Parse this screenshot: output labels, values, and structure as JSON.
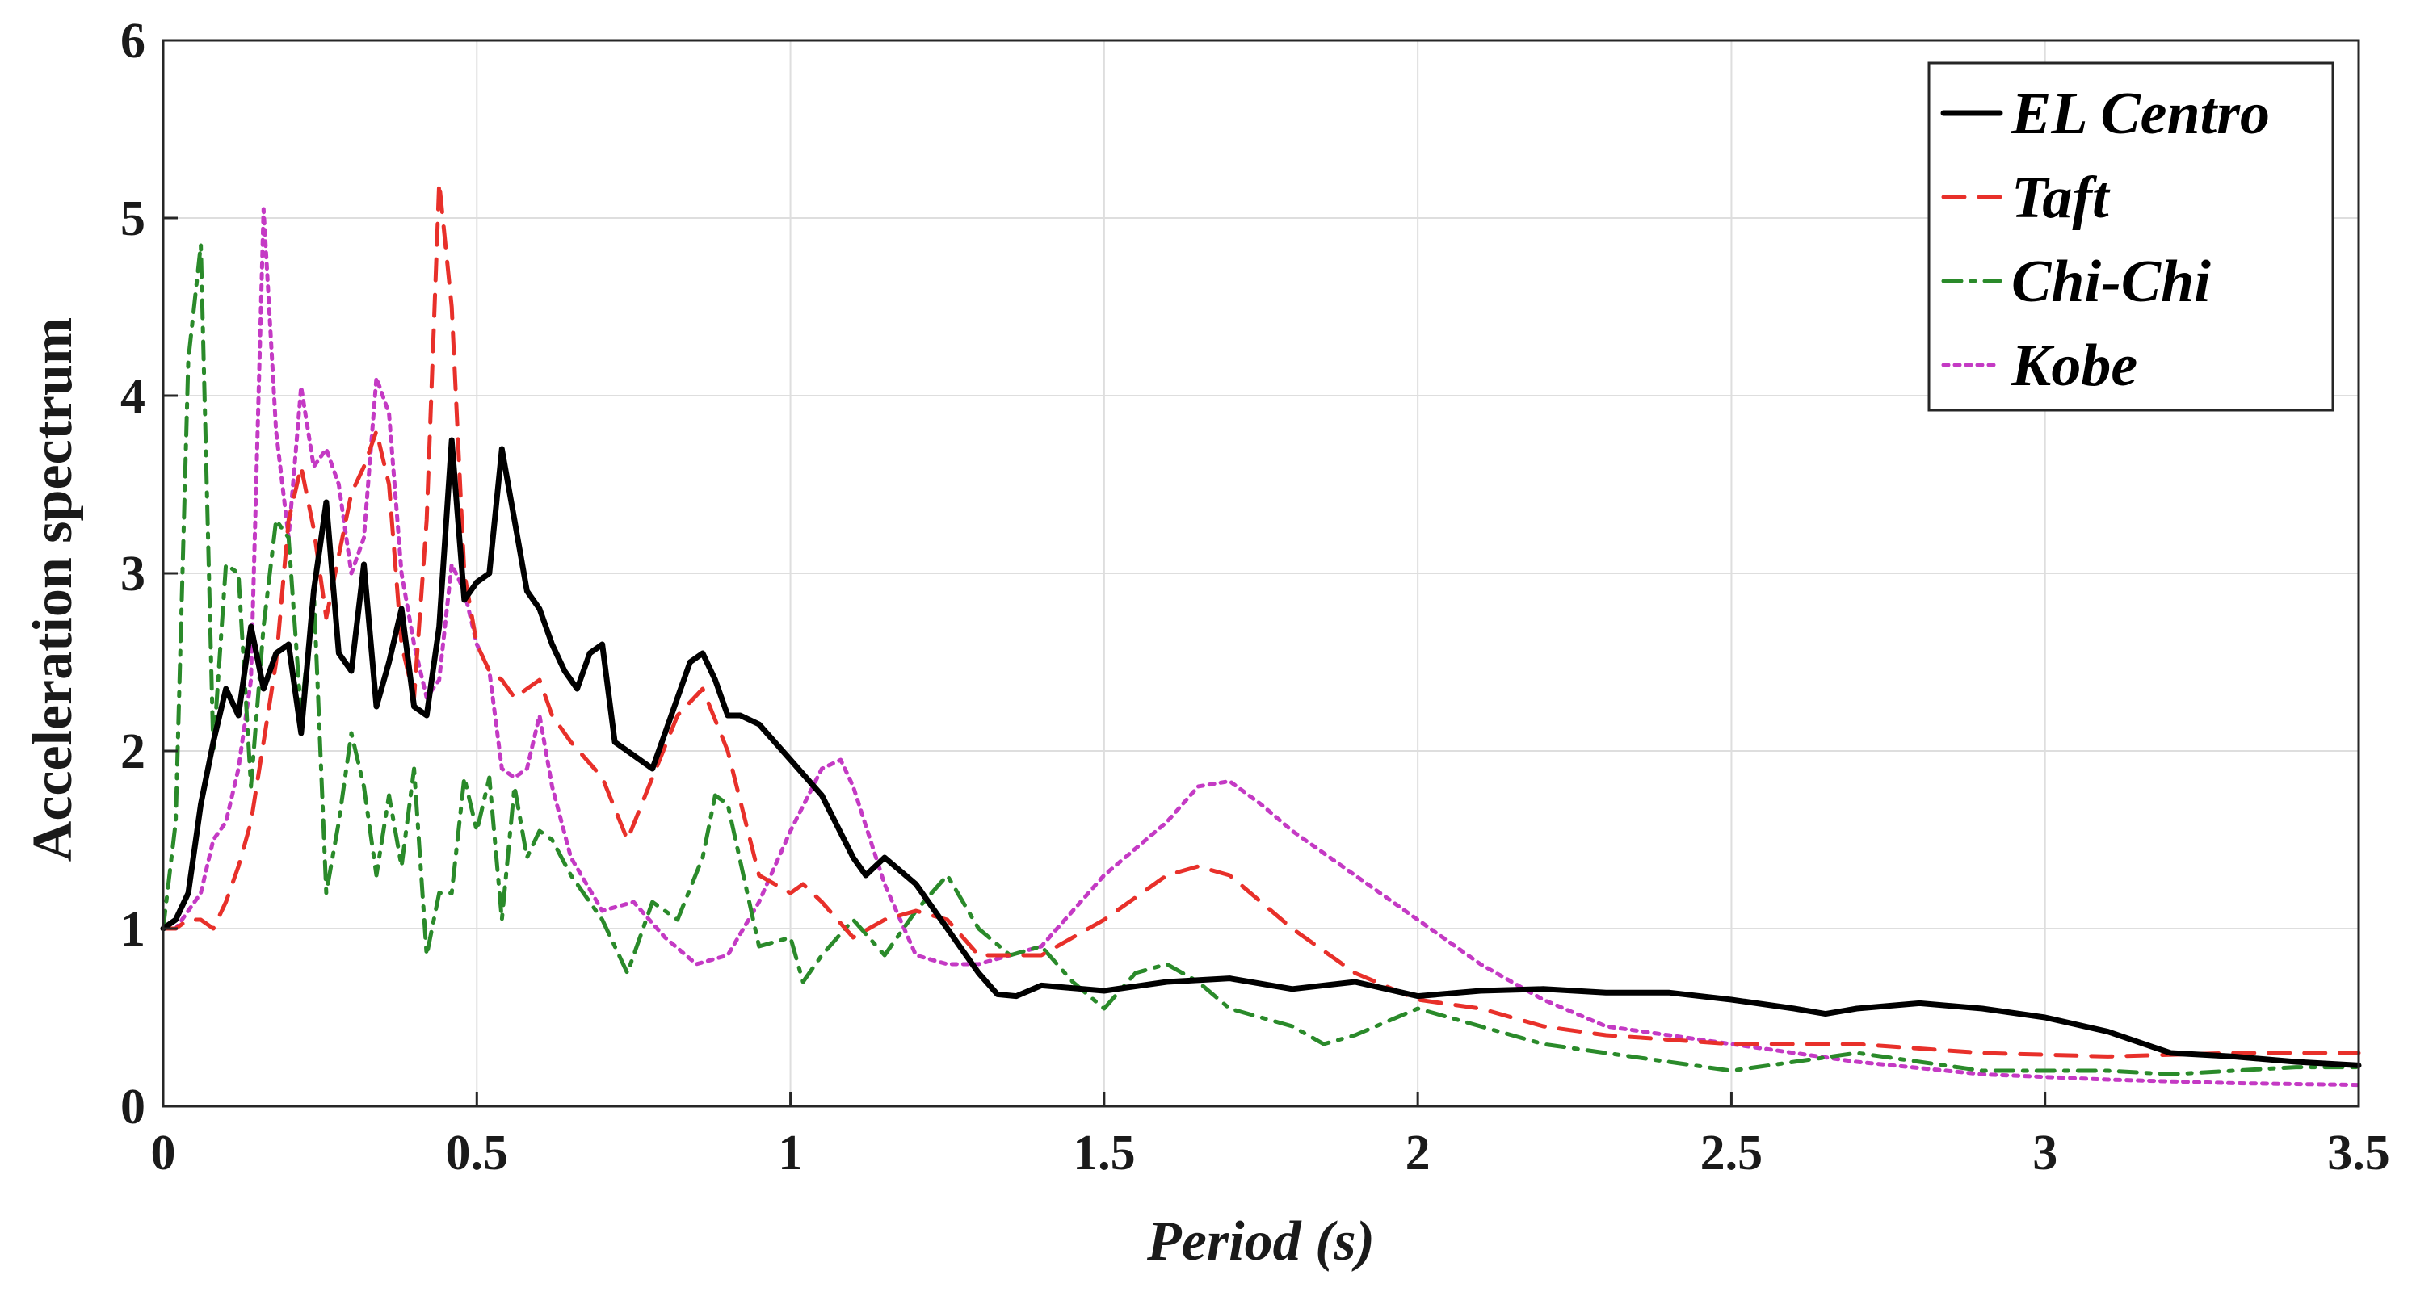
{
  "chart_data": {
    "type": "line",
    "title": "",
    "xlabel": "Period (s)",
    "ylabel": "Acceleration spectrum",
    "xlim": [
      0,
      3.5
    ],
    "ylim": [
      0,
      6
    ],
    "grid": true,
    "legend_position": "top-right",
    "xticks": [
      0,
      0.5,
      1,
      1.5,
      2,
      2.5,
      3,
      3.5
    ],
    "xtick_labels": [
      "0",
      "0.5",
      "1",
      "1.5",
      "2",
      "2.5",
      "3",
      "3.5"
    ],
    "yticks": [
      0,
      1,
      2,
      3,
      4,
      5,
      6
    ],
    "ytick_labels": [
      "0",
      "1",
      "2",
      "3",
      "4",
      "5",
      "6"
    ],
    "series": [
      {
        "name": "EL Centro",
        "color": "#000000",
        "style": "solid",
        "x": [
          0,
          0.02,
          0.04,
          0.06,
          0.08,
          0.1,
          0.12,
          0.14,
          0.16,
          0.18,
          0.2,
          0.22,
          0.24,
          0.26,
          0.28,
          0.3,
          0.32,
          0.34,
          0.36,
          0.38,
          0.4,
          0.42,
          0.44,
          0.46,
          0.48,
          0.5,
          0.52,
          0.54,
          0.56,
          0.58,
          0.6,
          0.62,
          0.64,
          0.66,
          0.68,
          0.7,
          0.72,
          0.74,
          0.76,
          0.78,
          0.8,
          0.82,
          0.84,
          0.86,
          0.88,
          0.9,
          0.92,
          0.95,
          1.0,
          1.05,
          1.1,
          1.12,
          1.15,
          1.2,
          1.25,
          1.3,
          1.33,
          1.36,
          1.4,
          1.5,
          1.6,
          1.7,
          1.8,
          1.9,
          2.0,
          2.1,
          2.2,
          2.3,
          2.4,
          2.5,
          2.6,
          2.65,
          2.7,
          2.8,
          2.9,
          3.0,
          3.1,
          3.2,
          3.3,
          3.4,
          3.5
        ],
        "y": [
          1.0,
          1.05,
          1.2,
          1.7,
          2.05,
          2.35,
          2.2,
          2.7,
          2.35,
          2.55,
          2.6,
          2.1,
          2.9,
          3.4,
          2.55,
          2.45,
          3.05,
          2.25,
          2.5,
          2.8,
          2.25,
          2.2,
          2.7,
          3.75,
          2.85,
          2.95,
          3.0,
          3.7,
          3.3,
          2.9,
          2.8,
          2.6,
          2.45,
          2.35,
          2.55,
          2.6,
          2.05,
          2.0,
          1.95,
          1.9,
          2.1,
          2.3,
          2.5,
          2.55,
          2.4,
          2.2,
          2.2,
          2.15,
          1.95,
          1.75,
          1.4,
          1.3,
          1.4,
          1.25,
          1.0,
          0.75,
          0.63,
          0.62,
          0.68,
          0.65,
          0.7,
          0.72,
          0.66,
          0.7,
          0.62,
          0.65,
          0.66,
          0.64,
          0.64,
          0.6,
          0.55,
          0.52,
          0.55,
          0.58,
          0.55,
          0.5,
          0.42,
          0.3,
          0.28,
          0.25,
          0.23
        ]
      },
      {
        "name": "Taft",
        "color": "#e8302a",
        "style": "dashed",
        "x": [
          0,
          0.02,
          0.04,
          0.06,
          0.08,
          0.1,
          0.12,
          0.14,
          0.16,
          0.18,
          0.2,
          0.22,
          0.24,
          0.26,
          0.28,
          0.3,
          0.32,
          0.34,
          0.36,
          0.38,
          0.4,
          0.42,
          0.44,
          0.46,
          0.48,
          0.5,
          0.52,
          0.54,
          0.56,
          0.58,
          0.6,
          0.62,
          0.65,
          0.7,
          0.74,
          0.78,
          0.82,
          0.86,
          0.9,
          0.95,
          1.0,
          1.02,
          1.05,
          1.1,
          1.15,
          1.2,
          1.25,
          1.3,
          1.4,
          1.5,
          1.6,
          1.65,
          1.7,
          1.8,
          1.9,
          2.0,
          2.1,
          2.2,
          2.3,
          2.5,
          2.7,
          2.9,
          3.1,
          3.3,
          3.5
        ],
        "y": [
          1.0,
          1.0,
          1.05,
          1.05,
          1.0,
          1.15,
          1.35,
          1.6,
          2.05,
          2.5,
          3.3,
          3.6,
          3.25,
          2.75,
          3.1,
          3.45,
          3.6,
          3.8,
          3.5,
          2.6,
          2.3,
          3.3,
          5.2,
          4.5,
          3.0,
          2.6,
          2.45,
          2.4,
          2.3,
          2.35,
          2.4,
          2.2,
          2.05,
          1.85,
          1.5,
          1.85,
          2.2,
          2.35,
          2.0,
          1.3,
          1.2,
          1.25,
          1.15,
          0.95,
          1.05,
          1.1,
          1.05,
          0.85,
          0.85,
          1.05,
          1.3,
          1.35,
          1.3,
          1.0,
          0.75,
          0.6,
          0.55,
          0.45,
          0.4,
          0.35,
          0.35,
          0.3,
          0.28,
          0.3,
          0.3
        ]
      },
      {
        "name": "Chi-Chi",
        "color": "#2a8a2a",
        "style": "dashdot",
        "x": [
          0,
          0.02,
          0.04,
          0.06,
          0.08,
          0.1,
          0.12,
          0.14,
          0.16,
          0.18,
          0.2,
          0.22,
          0.24,
          0.26,
          0.28,
          0.3,
          0.32,
          0.34,
          0.36,
          0.38,
          0.4,
          0.42,
          0.44,
          0.46,
          0.48,
          0.5,
          0.52,
          0.54,
          0.56,
          0.58,
          0.6,
          0.62,
          0.65,
          0.7,
          0.74,
          0.78,
          0.82,
          0.86,
          0.88,
          0.9,
          0.95,
          1.0,
          1.02,
          1.05,
          1.1,
          1.15,
          1.2,
          1.25,
          1.3,
          1.35,
          1.4,
          1.45,
          1.5,
          1.55,
          1.6,
          1.65,
          1.7,
          1.8,
          1.85,
          1.9,
          2.0,
          2.1,
          2.2,
          2.3,
          2.4,
          2.5,
          2.6,
          2.7,
          2.8,
          2.9,
          3.0,
          3.1,
          3.2,
          3.3,
          3.4,
          3.5
        ],
        "y": [
          1.0,
          1.6,
          4.2,
          4.85,
          2.0,
          3.05,
          3.0,
          1.8,
          2.7,
          3.3,
          3.2,
          2.2,
          2.9,
          1.2,
          1.6,
          2.1,
          1.8,
          1.3,
          1.75,
          1.35,
          1.9,
          0.85,
          1.2,
          1.2,
          1.85,
          1.55,
          1.85,
          1.05,
          1.8,
          1.4,
          1.55,
          1.5,
          1.3,
          1.05,
          0.75,
          1.15,
          1.05,
          1.4,
          1.75,
          1.7,
          0.9,
          0.95,
          0.7,
          0.85,
          1.05,
          0.85,
          1.1,
          1.3,
          1.0,
          0.85,
          0.9,
          0.7,
          0.55,
          0.75,
          0.8,
          0.7,
          0.55,
          0.45,
          0.35,
          0.4,
          0.55,
          0.45,
          0.35,
          0.3,
          0.25,
          0.2,
          0.25,
          0.3,
          0.25,
          0.2,
          0.2,
          0.2,
          0.18,
          0.2,
          0.22,
          0.22
        ]
      },
      {
        "name": "Kobe",
        "color": "#c43ac4",
        "style": "dotted",
        "x": [
          0,
          0.02,
          0.04,
          0.06,
          0.08,
          0.1,
          0.12,
          0.14,
          0.16,
          0.18,
          0.2,
          0.22,
          0.24,
          0.26,
          0.28,
          0.3,
          0.32,
          0.34,
          0.36,
          0.38,
          0.4,
          0.42,
          0.44,
          0.46,
          0.48,
          0.5,
          0.52,
          0.54,
          0.56,
          0.58,
          0.6,
          0.62,
          0.65,
          0.7,
          0.75,
          0.8,
          0.85,
          0.9,
          0.95,
          1.0,
          1.05,
          1.08,
          1.1,
          1.15,
          1.2,
          1.25,
          1.3,
          1.4,
          1.5,
          1.6,
          1.65,
          1.7,
          1.75,
          1.8,
          1.9,
          2.0,
          2.1,
          2.2,
          2.3,
          2.5,
          2.7,
          2.9,
          3.1,
          3.3,
          3.5
        ],
        "y": [
          1.0,
          1.0,
          1.1,
          1.2,
          1.5,
          1.6,
          1.9,
          2.4,
          5.05,
          3.8,
          3.2,
          4.05,
          3.6,
          3.7,
          3.5,
          3.0,
          3.2,
          4.1,
          3.9,
          3.0,
          2.6,
          2.3,
          2.4,
          3.05,
          2.9,
          2.6,
          2.45,
          1.9,
          1.85,
          1.9,
          2.2,
          1.8,
          1.4,
          1.1,
          1.15,
          0.95,
          0.8,
          0.85,
          1.15,
          1.55,
          1.9,
          1.95,
          1.8,
          1.25,
          0.85,
          0.8,
          0.8,
          0.9,
          1.3,
          1.6,
          1.8,
          1.83,
          1.7,
          1.55,
          1.3,
          1.05,
          0.8,
          0.6,
          0.45,
          0.35,
          0.25,
          0.18,
          0.15,
          0.13,
          0.12
        ]
      }
    ]
  }
}
